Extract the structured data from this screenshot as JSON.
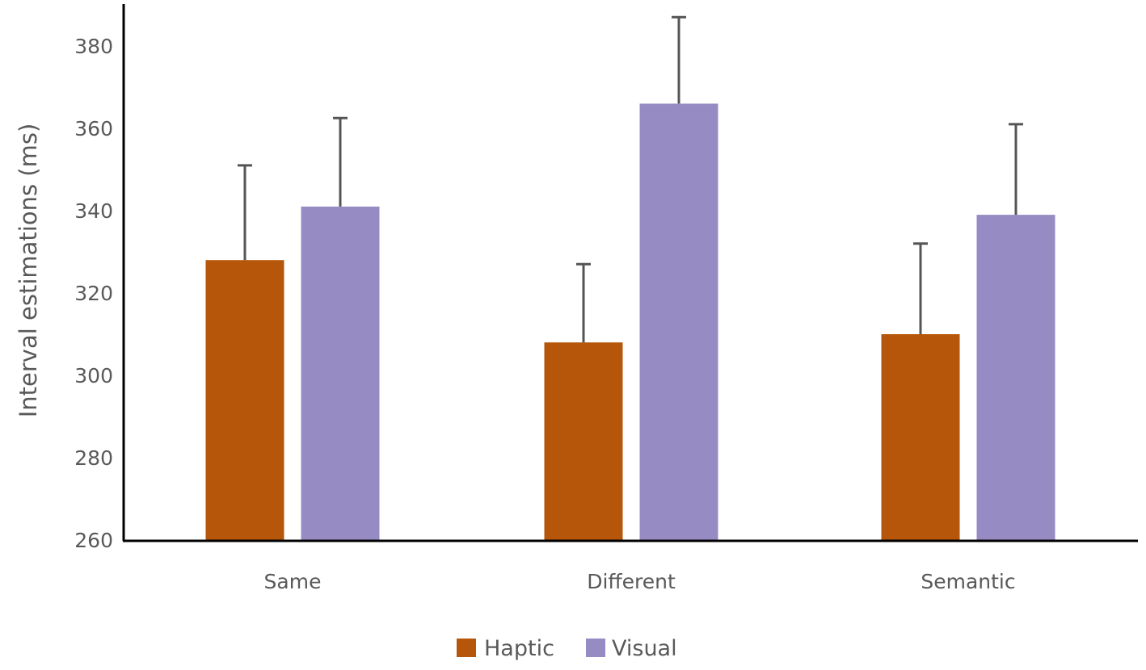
{
  "chart_data": {
    "type": "bar",
    "title": "",
    "xlabel": "",
    "ylabel": "Interval estimations (ms)",
    "ylim": [
      260,
      380
    ],
    "yticks": [
      260,
      280,
      300,
      320,
      340,
      360,
      380
    ],
    "grid": false,
    "legend_position": "bottom",
    "categories": [
      "Same",
      "Different",
      "Semantic"
    ],
    "series": [
      {
        "name": "Haptic",
        "color": "#B5560A",
        "values": [
          328,
          308,
          310
        ],
        "error": [
          23,
          19,
          22
        ]
      },
      {
        "name": "Visual",
        "color": "#978BC4",
        "values": [
          341,
          366,
          339
        ],
        "error": [
          21.5,
          21,
          22
        ]
      }
    ],
    "error_bar_color": "#555555"
  }
}
